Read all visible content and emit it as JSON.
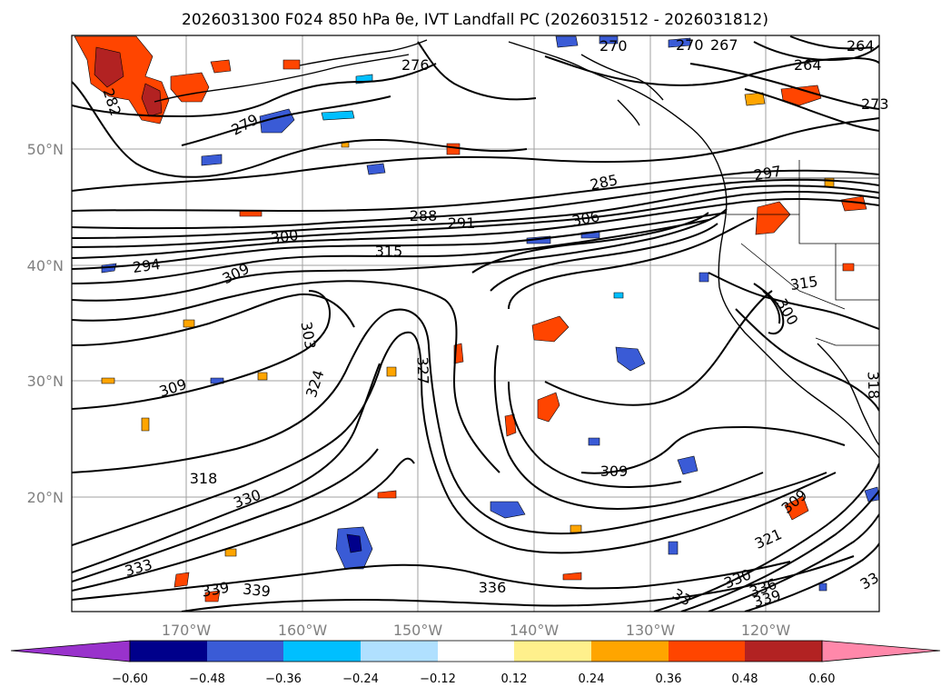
{
  "title": "2026031300 F024 850 hPa θe, IVT Landfall PC (2026031512 - 2026031812)",
  "map": {
    "lon_ticks": [
      "170°W",
      "160°W",
      "150°W",
      "140°W",
      "130°W",
      "120°W"
    ],
    "lat_ticks": [
      "50°N",
      "40°N",
      "30°N",
      "20°N"
    ],
    "contour_labels": [
      "276",
      "270",
      "270",
      "267",
      "264",
      "264",
      "273",
      "282",
      "279",
      "285",
      "297",
      "288",
      "291",
      "300",
      "306",
      "294",
      "300",
      "315",
      "309",
      "315",
      "309",
      "303",
      "324",
      "327",
      "318",
      "309",
      "318",
      "330",
      "333",
      "339",
      "339",
      "336",
      "309",
      "321",
      "330",
      "336",
      "339",
      "33",
      "33"
    ],
    "fill_colors": {
      "neg_strong": "#00008b",
      "neg_mid": "#3a5bd6",
      "neg_light": "#00bfff",
      "neg_pale": "#b0e0ff",
      "pos_pale": "#fff08c",
      "pos_light": "#ffa500",
      "pos_mid": "#ff4500",
      "pos_strong": "#b22222"
    }
  },
  "colorbar": {
    "colors": [
      "#9932cc",
      "#00008b",
      "#3a5bd6",
      "#00bfff",
      "#b0e0ff",
      "#ffffff",
      "#fff08c",
      "#ffa500",
      "#ff4500",
      "#b22222",
      "#ff88aa"
    ],
    "tick_labels": [
      "−0.60",
      "−0.48",
      "−0.36",
      "−0.24",
      "−0.12",
      "0.12",
      "0.24",
      "0.36",
      "0.48",
      "0.60"
    ]
  }
}
